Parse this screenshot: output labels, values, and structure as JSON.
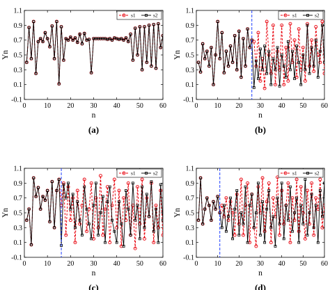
{
  "chart_data": [
    {
      "type": "line",
      "caption": "(a)",
      "xlabel": "n",
      "ylabel": "Yn",
      "xlim": [
        0,
        60
      ],
      "ylim": [
        -0.1,
        1.1
      ],
      "xticks": [
        "0",
        "10",
        "20",
        "30",
        "40",
        "50",
        "60"
      ],
      "yticks": [
        "-0.1",
        "0.1",
        "0.3",
        "0.5",
        "0.7",
        "0.9",
        "1.1"
      ],
      "divider_x": null,
      "series": [
        {
          "name": "s1",
          "color": "#e8000b",
          "marker": "circle",
          "dashed": true,
          "x": [
            1,
            2,
            3,
            4,
            5,
            6,
            7,
            8,
            9,
            10,
            11,
            12,
            13,
            14,
            15,
            16,
            17,
            18,
            19,
            20,
            21,
            22,
            23,
            24,
            25,
            26,
            27,
            28,
            29,
            30,
            31,
            32,
            33,
            34,
            35,
            36,
            37,
            38,
            39,
            40,
            41,
            42,
            43,
            44,
            45,
            46,
            47,
            48,
            49,
            50,
            51,
            52,
            53,
            54,
            55,
            56,
            57,
            58,
            59,
            60
          ],
          "values": [
            0.4,
            0.87,
            0.45,
            0.95,
            0.25,
            0.68,
            0.72,
            0.68,
            0.8,
            0.72,
            0.61,
            0.89,
            0.45,
            0.95,
            0.11,
            0.88,
            0.43,
            0.72,
            0.7,
            0.74,
            0.7,
            0.73,
            0.67,
            0.78,
            0.65,
            0.79,
            0.7,
            0.71,
            0.26,
            0.72,
            0.72,
            0.72,
            0.72,
            0.72,
            0.72,
            0.71,
            0.72,
            0.7,
            0.73,
            0.72,
            0.71,
            0.72,
            0.7,
            0.73,
            0.68,
            0.78,
            0.43,
            0.86,
            0.5,
            0.88,
            0.3,
            0.88,
            0.4,
            0.9,
            0.35,
            0.91,
            0.32,
            0.92,
            0.6,
            0.76
          ]
        },
        {
          "name": "s2",
          "color": "#000000",
          "marker": "square",
          "dashed": false,
          "x": [
            1,
            2,
            3,
            4,
            5,
            6,
            7,
            8,
            9,
            10,
            11,
            12,
            13,
            14,
            15,
            16,
            17,
            18,
            19,
            20,
            21,
            22,
            23,
            24,
            25,
            26,
            27,
            28,
            29,
            30,
            31,
            32,
            33,
            34,
            35,
            36,
            37,
            38,
            39,
            40,
            41,
            42,
            43,
            44,
            45,
            46,
            47,
            48,
            49,
            50,
            51,
            52,
            53,
            54,
            55,
            56,
            57,
            58,
            59,
            60
          ],
          "values": [
            0.4,
            0.87,
            0.45,
            0.95,
            0.25,
            0.68,
            0.72,
            0.68,
            0.8,
            0.72,
            0.61,
            0.89,
            0.45,
            0.95,
            0.11,
            0.88,
            0.43,
            0.72,
            0.7,
            0.74,
            0.7,
            0.73,
            0.67,
            0.78,
            0.65,
            0.79,
            0.7,
            0.71,
            0.26,
            0.72,
            0.72,
            0.72,
            0.72,
            0.72,
            0.72,
            0.71,
            0.72,
            0.7,
            0.73,
            0.72,
            0.71,
            0.72,
            0.7,
            0.73,
            0.68,
            0.78,
            0.43,
            0.86,
            0.5,
            0.88,
            0.3,
            0.88,
            0.4,
            0.9,
            0.35,
            0.91,
            0.32,
            0.92,
            0.6,
            0.76
          ]
        }
      ]
    },
    {
      "type": "line",
      "caption": "(b)",
      "xlabel": "n",
      "ylabel": "Yn",
      "xlim": [
        0,
        60
      ],
      "ylim": [
        -0.1,
        1.1
      ],
      "xticks": [
        "0",
        "10",
        "20",
        "30",
        "40",
        "50",
        "60"
      ],
      "yticks": [
        "-0.1",
        "0.1",
        "0.3",
        "0.5",
        "0.7",
        "0.9",
        "1.1"
      ],
      "divider_x": 26,
      "series": [
        {
          "name": "s1",
          "color": "#e8000b",
          "marker": "circle",
          "dashed": true,
          "x": [
            1,
            2,
            3,
            4,
            5,
            6,
            7,
            8,
            9,
            10,
            11,
            12,
            13,
            14,
            15,
            16,
            17,
            18,
            19,
            20,
            21,
            22,
            23,
            24,
            25,
            26,
            27,
            28,
            29,
            30,
            31,
            32,
            33,
            34,
            35,
            36,
            37,
            38,
            39,
            40,
            41,
            42,
            43,
            44,
            45,
            46,
            47,
            48,
            49,
            50,
            51,
            52,
            53,
            54,
            55,
            56,
            57,
            58,
            59,
            60
          ],
          "values": [
            0.4,
            0.27,
            0.65,
            0.45,
            0.55,
            0.35,
            0.6,
            0.1,
            0.5,
            0.95,
            0.45,
            0.8,
            0.26,
            0.55,
            0.35,
            0.62,
            0.4,
            0.76,
            0.3,
            0.82,
            0.2,
            0.72,
            0.35,
            0.85,
            0.6,
            0.7,
            0.68,
            0.35,
            0.8,
            0.15,
            0.45,
            0.05,
            0.95,
            0.5,
            0.25,
            0.9,
            0.1,
            0.55,
            0.3,
            0.9,
            0.1,
            0.6,
            0.15,
            0.92,
            0.4,
            0.7,
            0.2,
            0.85,
            0.3,
            0.6,
            0.15,
            0.92,
            0.35,
            0.7,
            0.28,
            0.88,
            0.5,
            0.4,
            0.95,
            0.25
          ]
        },
        {
          "name": "s2",
          "color": "#000000",
          "marker": "square",
          "dashed": false,
          "x": [
            1,
            2,
            3,
            4,
            5,
            6,
            7,
            8,
            9,
            10,
            11,
            12,
            13,
            14,
            15,
            16,
            17,
            18,
            19,
            20,
            21,
            22,
            23,
            24,
            25,
            26,
            27,
            28,
            29,
            30,
            31,
            32,
            33,
            34,
            35,
            36,
            37,
            38,
            39,
            40,
            41,
            42,
            43,
            44,
            45,
            46,
            47,
            48,
            49,
            50,
            51,
            52,
            53,
            54,
            55,
            56,
            57,
            58,
            59,
            60
          ],
          "values": [
            0.4,
            0.27,
            0.65,
            0.45,
            0.55,
            0.35,
            0.6,
            0.1,
            0.5,
            0.95,
            0.45,
            0.8,
            0.26,
            0.55,
            0.35,
            0.62,
            0.4,
            0.76,
            0.3,
            0.82,
            0.2,
            0.72,
            0.35,
            0.85,
            0.6,
            0.7,
            0.06,
            0.42,
            0.18,
            0.58,
            0.3,
            0.62,
            0.25,
            0.55,
            0.1,
            0.45,
            0.3,
            0.6,
            0.08,
            0.5,
            0.35,
            0.2,
            0.68,
            0.3,
            0.55,
            0.18,
            0.62,
            0.4,
            0.1,
            0.5,
            0.3,
            0.9,
            0.25,
            0.6,
            0.35,
            0.7,
            0.2,
            0.55,
            0.9,
            0.4
          ]
        }
      ]
    },
    {
      "type": "line",
      "caption": "(c)",
      "xlabel": "n",
      "ylabel": "Yn",
      "xlim": [
        0,
        60
      ],
      "ylim": [
        -0.1,
        1.1
      ],
      "xticks": [
        "0",
        "10",
        "20",
        "30",
        "40",
        "50",
        "60"
      ],
      "yticks": [
        "-0.1",
        "0.1",
        "0.3",
        "0.5",
        "0.7",
        "0.9",
        "1.1"
      ],
      "divider_x": 16,
      "series": [
        {
          "name": "s1",
          "color": "#e8000b",
          "marker": "circle",
          "dashed": true,
          "x": [
            1,
            2,
            3,
            4,
            5,
            6,
            7,
            8,
            9,
            10,
            11,
            12,
            13,
            14,
            15,
            16,
            17,
            18,
            19,
            20,
            21,
            22,
            23,
            24,
            25,
            26,
            27,
            28,
            29,
            30,
            31,
            32,
            33,
            34,
            35,
            36,
            37,
            38,
            39,
            40,
            41,
            42,
            43,
            44,
            45,
            46,
            47,
            48,
            49,
            50,
            51,
            52,
            53,
            54,
            55,
            56,
            57,
            58,
            59,
            60
          ],
          "values": [
            0.4,
            0.55,
            0.07,
            0.97,
            0.72,
            0.84,
            0.55,
            0.72,
            0.67,
            0.8,
            0.38,
            0.92,
            0.3,
            0.8,
            0.95,
            0.6,
            0.9,
            0.2,
            0.85,
            0.4,
            0.7,
            0.1,
            0.8,
            0.35,
            0.6,
            0.95,
            0.25,
            0.55,
            0.9,
            0.15,
            0.7,
            0.3,
            1.0,
            0.2,
            0.55,
            0.85,
            0.1,
            0.6,
            0.95,
            0.3,
            0.8,
            0.05,
            0.7,
            0.4,
            0.9,
            0.2,
            0.6,
            0.02,
            0.85,
            0.35,
            0.95,
            0.15,
            0.7,
            0.45,
            0.9,
            0.1,
            0.6,
            0.3,
            0.8,
            0.2
          ]
        },
        {
          "name": "s2",
          "color": "#000000",
          "marker": "square",
          "dashed": false,
          "x": [
            1,
            2,
            3,
            4,
            5,
            6,
            7,
            8,
            9,
            10,
            11,
            12,
            13,
            14,
            15,
            16,
            17,
            18,
            19,
            20,
            21,
            22,
            23,
            24,
            25,
            26,
            27,
            28,
            29,
            30,
            31,
            32,
            33,
            34,
            35,
            36,
            37,
            38,
            39,
            40,
            41,
            42,
            43,
            44,
            45,
            46,
            47,
            48,
            49,
            50,
            51,
            52,
            53,
            54,
            55,
            56,
            57,
            58,
            59,
            60
          ],
          "values": [
            0.4,
            0.55,
            0.07,
            0.97,
            0.72,
            0.84,
            0.55,
            0.72,
            0.67,
            0.8,
            0.38,
            0.92,
            0.3,
            0.8,
            0.95,
            0.06,
            0.88,
            0.7,
            0.9,
            0.55,
            0.75,
            0.3,
            0.65,
            0.4,
            0.2,
            0.85,
            0.55,
            0.35,
            0.15,
            0.6,
            0.9,
            0.2,
            0.5,
            0.72,
            0.1,
            0.65,
            0.85,
            0.4,
            0.25,
            0.1,
            0.65,
            0.35,
            0.05,
            0.8,
            0.55,
            0.2,
            0.9,
            0.4,
            0.6,
            0.15,
            0.85,
            0.3,
            0.75,
            0.45,
            0.92,
            0.25,
            0.55,
            0.1,
            0.88,
            0.4
          ]
        }
      ]
    },
    {
      "type": "line",
      "caption": "(d)",
      "xlabel": "n",
      "ylabel": "Yn",
      "xlim": [
        0,
        60
      ],
      "ylim": [
        -0.1,
        1.1
      ],
      "xticks": [
        "0",
        "10",
        "20",
        "30",
        "40",
        "50",
        "60"
      ],
      "yticks": [
        "-0.1",
        "0.1",
        "0.3",
        "0.5",
        "0.7",
        "0.9",
        "1.1"
      ],
      "divider_x": 11,
      "series": [
        {
          "name": "s1",
          "color": "#e8000b",
          "marker": "circle",
          "dashed": true,
          "x": [
            1,
            2,
            3,
            4,
            5,
            6,
            7,
            8,
            9,
            10,
            11,
            12,
            13,
            14,
            15,
            16,
            17,
            18,
            19,
            20,
            21,
            22,
            23,
            24,
            25,
            26,
            27,
            28,
            29,
            30,
            31,
            32,
            33,
            34,
            35,
            36,
            37,
            38,
            39,
            40,
            41,
            42,
            43,
            44,
            45,
            46,
            47,
            48,
            49,
            50,
            51,
            52,
            53,
            54,
            55,
            56,
            57,
            58,
            59,
            60
          ],
          "values": [
            0.4,
            0.97,
            0.35,
            0.55,
            0.7,
            0.6,
            0.4,
            0.65,
            0.55,
            0.72,
            0.5,
            0.6,
            0.45,
            0.7,
            0.4,
            0.65,
            0.5,
            0.2,
            0.75,
            0.35,
            0.95,
            0.2,
            0.6,
            0.9,
            0.1,
            0.75,
            0.3,
            0.05,
            0.85,
            0.5,
            0.97,
            0.25,
            0.65,
            0.9,
            0.1,
            0.7,
            0.45,
            0.98,
            0.2,
            0.8,
            0.35,
            0.6,
            0.9,
            0.1,
            0.7,
            0.4,
            0.95,
            0.25,
            0.85,
            0.5,
            0.15,
            0.8,
            0.35,
            0.9,
            0.2,
            0.7,
            0.55,
            0.95,
            0.3,
            0.6
          ]
        },
        {
          "name": "s2",
          "color": "#000000",
          "marker": "square",
          "dashed": false,
          "x": [
            1,
            2,
            3,
            4,
            5,
            6,
            7,
            8,
            9,
            10,
            11,
            12,
            13,
            14,
            15,
            16,
            17,
            18,
            19,
            20,
            21,
            22,
            23,
            24,
            25,
            26,
            27,
            28,
            29,
            30,
            31,
            32,
            33,
            34,
            35,
            36,
            37,
            38,
            39,
            40,
            41,
            42,
            43,
            44,
            45,
            46,
            47,
            48,
            49,
            50,
            51,
            52,
            53,
            54,
            55,
            56,
            57,
            58,
            59,
            60
          ],
          "values": [
            0.4,
            0.97,
            0.35,
            0.55,
            0.7,
            0.6,
            0.4,
            0.65,
            0.55,
            0.72,
            0.5,
            0.3,
            0.6,
            0.25,
            0.45,
            0.7,
            0.15,
            0.55,
            0.8,
            0.2,
            0.5,
            0.35,
            0.85,
            0.1,
            0.6,
            0.75,
            0.3,
            0.5,
            0.9,
            0.2,
            0.65,
            0.1,
            0.55,
            0.8,
            0.3,
            0.45,
            0.05,
            0.7,
            0.35,
            0.9,
            0.15,
            0.6,
            0.4,
            0.85,
            0.25,
            0.5,
            0.7,
            0.1,
            0.6,
            0.35,
            0.95,
            0.2,
            0.5,
            0.75,
            0.3,
            0.6,
            0.1,
            0.8,
            0.45,
            0.9
          ]
        }
      ]
    }
  ]
}
